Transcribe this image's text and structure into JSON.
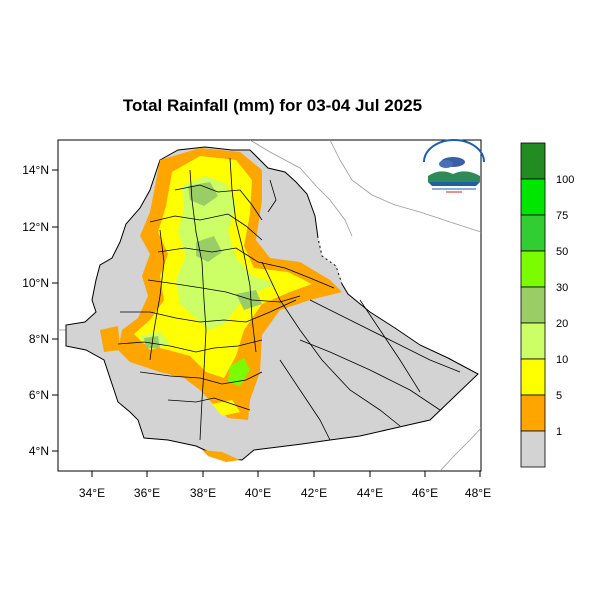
{
  "title": "Total Rainfall (mm) for 03-04 Jul 2025",
  "map": {
    "x_ticks": [
      "34°E",
      "36°E",
      "38°E",
      "40°E",
      "42°E",
      "44°E",
      "46°E",
      "48°E"
    ],
    "y_ticks": [
      "14°N",
      "12°N",
      "10°N",
      "8°N",
      "6°N",
      "4°N"
    ],
    "lon_range": [
      33,
      48
    ],
    "lat_range": [
      3.2,
      15
    ]
  },
  "legend": {
    "labels": [
      "100",
      "75",
      "50",
      "30",
      "20",
      "10",
      "5",
      "1"
    ],
    "colors": [
      "#228B22",
      "#00e600",
      "#32cd32",
      "#7cfc00",
      "#9acd66",
      "#ccff66",
      "#ffff00",
      "#ffa500",
      "#d3d3d3"
    ]
  },
  "logo": {
    "icon": "meteorology-agency-logo"
  }
}
